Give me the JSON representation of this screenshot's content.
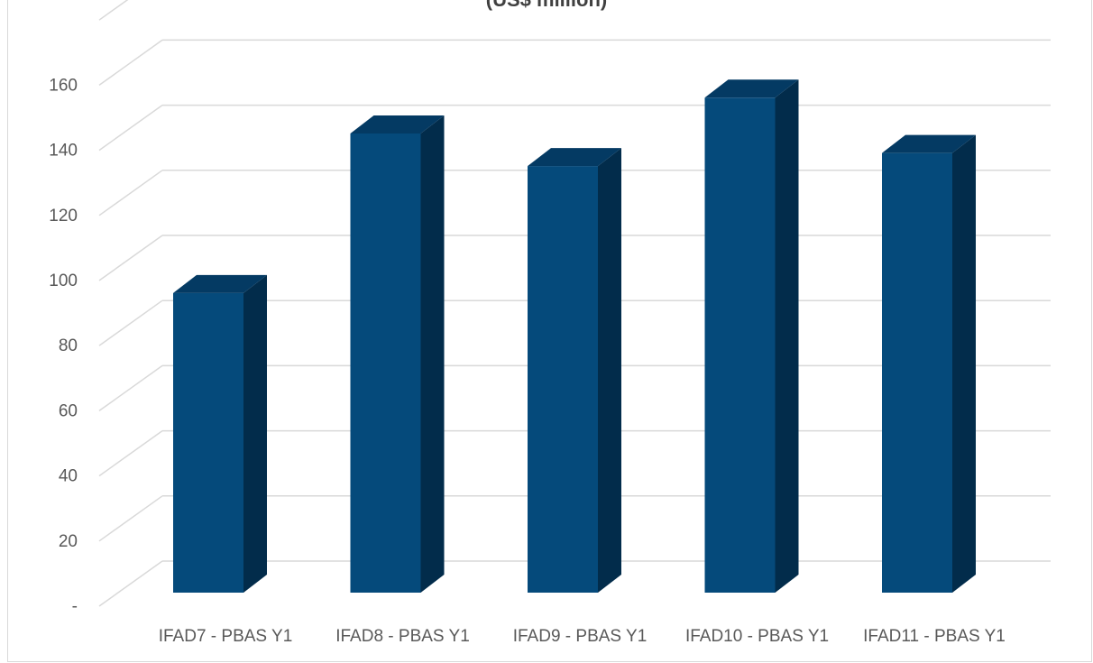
{
  "chart_data": {
    "type": "bar",
    "title": "(US$ million)",
    "categories": [
      "IFAD7 - PBAS Y1",
      "IFAD8 - PBAS Y1",
      "IFAD9 - PBAS Y1",
      "IFAD10 - PBAS Y1",
      "IFAD11 - PBAS Y1"
    ],
    "values": [
      92,
      141,
      131,
      152,
      135
    ],
    "ylim": [
      0,
      160
    ],
    "y_ticks": [
      "-",
      "20",
      "40",
      "60",
      "80",
      "100",
      "120",
      "140",
      "160"
    ],
    "grid": true,
    "legend": "none",
    "style": "3d-column"
  },
  "colors": {
    "bar_front": "#054a7b",
    "bar_top": "#043a63",
    "bar_side": "#022c4b",
    "gridline": "#d9d9d9",
    "tick_text": "#595959"
  }
}
